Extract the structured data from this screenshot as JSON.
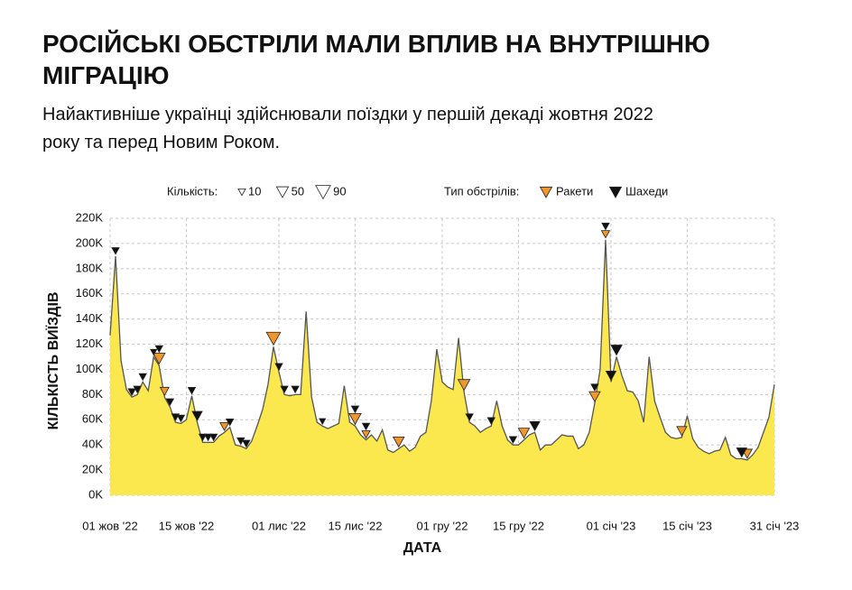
{
  "chart_data": {
    "type": "area",
    "title": "РОСІЙСЬКІ ОБСТРІЛИ МАЛИ ВПЛИВ НА ВНУТРІШНЮ МІГРАЦІЮ",
    "subtitle": "Найактивніше українці здійснювали поїздки у першій декаді жовтня 2022 року та перед Новим Роком.",
    "xlabel": "ДАТА",
    "ylabel": "КІЛЬКІСТЬ ВИЇЗДІВ",
    "color": "#fbe84f",
    "line_color": "#555555",
    "grid": true,
    "x": [
      "2022-10-01",
      "2022-10-02",
      "2022-10-03",
      "2022-10-04",
      "2022-10-05",
      "2022-10-06",
      "2022-10-07",
      "2022-10-08",
      "2022-10-09",
      "2022-10-10",
      "2022-10-11",
      "2022-10-12",
      "2022-10-13",
      "2022-10-14",
      "2022-10-15",
      "2022-10-16",
      "2022-10-17",
      "2022-10-18",
      "2022-10-19",
      "2022-10-20",
      "2022-10-21",
      "2022-10-22",
      "2022-10-23",
      "2022-10-24",
      "2022-10-25",
      "2022-10-26",
      "2022-10-27",
      "2022-10-28",
      "2022-10-29",
      "2022-10-30",
      "2022-10-31",
      "2022-11-01",
      "2022-11-02",
      "2022-11-03",
      "2022-11-04",
      "2022-11-05",
      "2022-11-06",
      "2022-11-07",
      "2022-11-08",
      "2022-11-09",
      "2022-11-10",
      "2022-11-11",
      "2022-11-12",
      "2022-11-13",
      "2022-11-14",
      "2022-11-15",
      "2022-11-16",
      "2022-11-17",
      "2022-11-18",
      "2022-11-19",
      "2022-11-20",
      "2022-11-21",
      "2022-11-22",
      "2022-11-23",
      "2022-11-24",
      "2022-11-25",
      "2022-11-26",
      "2022-11-27",
      "2022-11-28",
      "2022-11-29",
      "2022-11-30",
      "2022-12-01",
      "2022-12-02",
      "2022-12-03",
      "2022-12-04",
      "2022-12-05",
      "2022-12-06",
      "2022-12-07",
      "2022-12-08",
      "2022-12-09",
      "2022-12-10",
      "2022-12-11",
      "2022-12-12",
      "2022-12-13",
      "2022-12-14",
      "2022-12-15",
      "2022-12-16",
      "2022-12-17",
      "2022-12-18",
      "2022-12-19",
      "2022-12-20",
      "2022-12-21",
      "2022-12-22",
      "2022-12-23",
      "2022-12-24",
      "2022-12-25",
      "2022-12-26",
      "2022-12-27",
      "2022-12-28",
      "2022-12-29",
      "2022-12-30",
      "2022-12-31",
      "2023-01-01",
      "2023-01-02",
      "2023-01-03",
      "2023-01-04",
      "2023-01-05",
      "2023-01-06",
      "2023-01-07",
      "2023-01-08",
      "2023-01-09",
      "2023-01-10",
      "2023-01-11",
      "2023-01-12",
      "2023-01-13",
      "2023-01-14",
      "2023-01-15",
      "2023-01-16",
      "2023-01-17",
      "2023-01-18",
      "2023-01-19",
      "2023-01-20",
      "2023-01-21",
      "2023-01-22",
      "2023-01-23",
      "2023-01-24",
      "2023-01-25",
      "2023-01-26",
      "2023-01-27",
      "2023-01-28",
      "2023-01-29",
      "2023-01-30",
      "2023-01-31"
    ],
    "values": [
      127000,
      190000,
      107000,
      84000,
      78000,
      80000,
      90000,
      83000,
      110000,
      103000,
      78000,
      70000,
      58000,
      57000,
      60000,
      79000,
      58000,
      42000,
      42000,
      42000,
      47000,
      50000,
      54000,
      40000,
      39000,
      37000,
      43000,
      55000,
      68000,
      88000,
      118000,
      98000,
      80000,
      79000,
      80000,
      80000,
      146000,
      78000,
      58000,
      55000,
      53000,
      55000,
      57000,
      87000,
      58000,
      55000,
      48000,
      44000,
      48000,
      43000,
      52000,
      36000,
      34000,
      37000,
      40000,
      35000,
      38000,
      47000,
      50000,
      75000,
      116000,
      90000,
      86000,
      84000,
      125000,
      82000,
      58000,
      55000,
      50000,
      53000,
      55000,
      75000,
      55000,
      44000,
      40000,
      40000,
      44000,
      48000,
      50000,
      36000,
      40000,
      40000,
      44000,
      48000,
      47000,
      47000,
      37000,
      40000,
      50000,
      73000,
      100000,
      203000,
      90000,
      110000,
      95000,
      83000,
      82000,
      75000,
      58000,
      110000,
      75000,
      62000,
      50000,
      46000,
      45000,
      46000,
      63000,
      45000,
      38000,
      35000,
      33000,
      35000,
      36000,
      46000,
      32000,
      29000,
      29000,
      28000,
      32000,
      38000,
      50000,
      62000,
      88000
    ],
    "xlim": [
      "2022-10-01",
      "2023-01-31"
    ],
    "xticks": [
      {
        "value": "2022-10-01",
        "label": "01 жов '22"
      },
      {
        "value": "2022-10-15",
        "label": "15 жов '22"
      },
      {
        "value": "2022-11-01",
        "label": "01 лис '22"
      },
      {
        "value": "2022-11-15",
        "label": "15 лис '22"
      },
      {
        "value": "2022-12-01",
        "label": "01 гру '22"
      },
      {
        "value": "2022-12-15",
        "label": "15 гру '22"
      },
      {
        "value": "2023-01-01",
        "label": "01 січ '23"
      },
      {
        "value": "2023-01-15",
        "label": "15 січ '23"
      },
      {
        "value": "2023-01-31",
        "label": "31 січ '23"
      }
    ],
    "ylim": [
      0,
      220000
    ],
    "yticks": [
      {
        "value": 0,
        "label": "0K"
      },
      {
        "value": 20000,
        "label": "20K"
      },
      {
        "value": 40000,
        "label": "40K"
      },
      {
        "value": 60000,
        "label": "60K"
      },
      {
        "value": 80000,
        "label": "80K"
      },
      {
        "value": 100000,
        "label": "100K"
      },
      {
        "value": 120000,
        "label": "120K"
      },
      {
        "value": 140000,
        "label": "140K"
      },
      {
        "value": 160000,
        "label": "160K"
      },
      {
        "value": 180000,
        "label": "180K"
      },
      {
        "value": 200000,
        "label": "200K"
      },
      {
        "value": 220000,
        "label": "220K"
      }
    ],
    "size_legend": {
      "title": "Кількість:",
      "values": [
        10,
        50,
        90
      ]
    },
    "events": {
      "title": "Тип обстрілів:",
      "series": [
        {
          "name": "Ракети",
          "color": "#f0962e",
          "x": [
            "2022-10-10",
            "2022-10-11",
            "2022-10-22",
            "2022-10-31",
            "2022-11-15",
            "2022-11-17",
            "2022-11-23",
            "2022-12-05",
            "2022-12-16",
            "2022-12-29",
            "2022-12-31",
            "2023-01-14",
            "2023-01-26"
          ],
          "counts": [
            50,
            20,
            20,
            80,
            50,
            15,
            40,
            50,
            40,
            40,
            15,
            30,
            30
          ]
        },
        {
          "name": "Шахеди",
          "color": "#111111",
          "x": [
            "2022-10-02",
            "2022-10-05",
            "2022-10-06",
            "2022-10-07",
            "2022-10-09",
            "2022-10-10",
            "2022-10-12",
            "2022-10-13",
            "2022-10-14",
            "2022-10-16",
            "2022-10-17",
            "2022-10-18",
            "2022-10-19",
            "2022-10-20",
            "2022-10-23",
            "2022-10-25",
            "2022-10-26",
            "2022-11-01",
            "2022-11-02",
            "2022-11-04",
            "2022-11-09",
            "2022-11-15",
            "2022-11-17",
            "2022-12-06",
            "2022-12-10",
            "2022-12-14",
            "2022-12-18",
            "2022-12-29",
            "2022-12-31",
            "2023-01-01",
            "2023-01-02",
            "2023-01-25"
          ],
          "counts": [
            10,
            10,
            10,
            10,
            5,
            10,
            10,
            10,
            10,
            10,
            30,
            10,
            10,
            10,
            10,
            10,
            10,
            10,
            10,
            10,
            5,
            10,
            10,
            10,
            10,
            10,
            30,
            10,
            10,
            30,
            40,
            30
          ]
        }
      ]
    }
  }
}
